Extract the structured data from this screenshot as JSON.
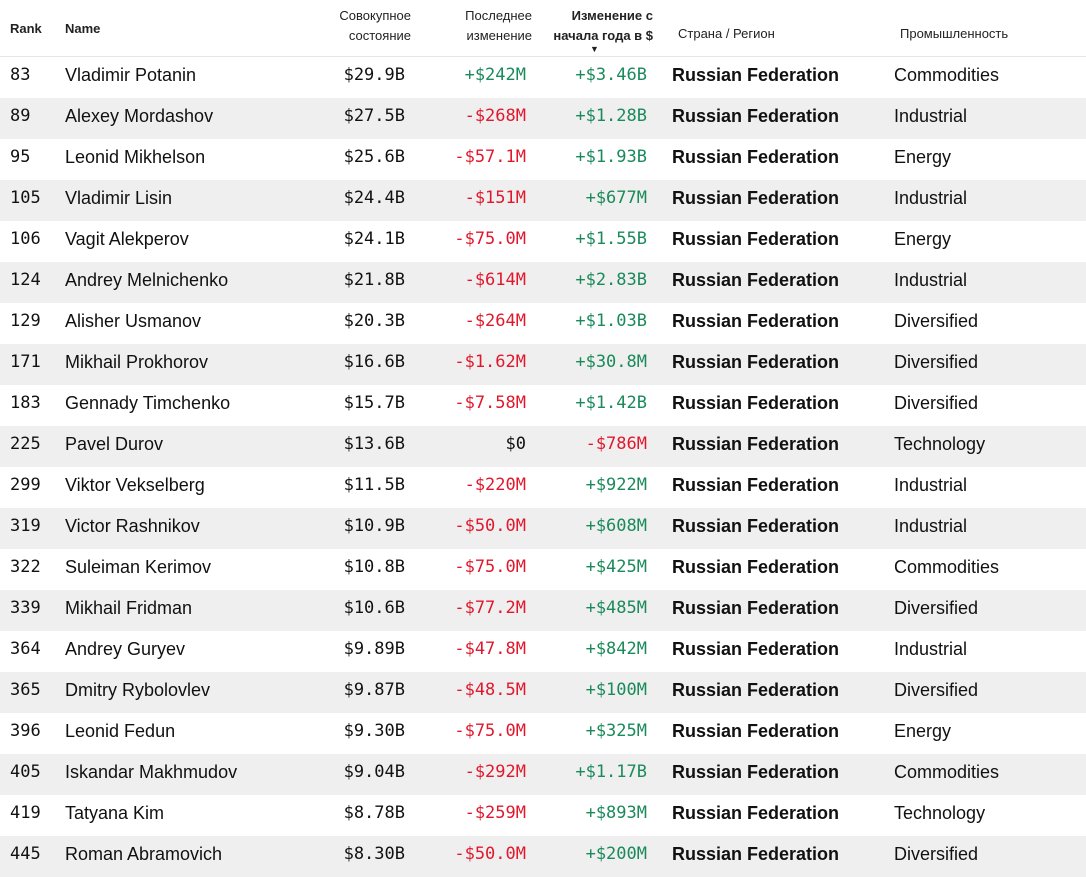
{
  "colors": {
    "positive": "#1a8a5a",
    "negative": "#e0182d",
    "stripe": "#efefef"
  },
  "header": {
    "rank": "Rank",
    "name": "Name",
    "net_worth": [
      "Совокупное",
      "состояние"
    ],
    "last_change": [
      "Последнее",
      "изменение"
    ],
    "ytd_change": [
      "Изменение с",
      "начала года в $"
    ],
    "sort_icon": "sort-desc-icon",
    "country": "Страна / Регион",
    "industry": "Промышленность"
  },
  "rows": [
    [
      "83",
      "Vladimir Potanin",
      "$29.9B",
      "+$242M",
      "+$3.46B",
      "Russian Federation",
      "Commodities"
    ],
    [
      "89",
      "Alexey Mordashov",
      "$27.5B",
      "-$268M",
      "+$1.28B",
      "Russian Federation",
      "Industrial"
    ],
    [
      "95",
      "Leonid Mikhelson",
      "$25.6B",
      "-$57.1M",
      "+$1.93B",
      "Russian Federation",
      "Energy"
    ],
    [
      "105",
      "Vladimir Lisin",
      "$24.4B",
      "-$151M",
      "+$677M",
      "Russian Federation",
      "Industrial"
    ],
    [
      "106",
      "Vagit Alekperov",
      "$24.1B",
      "-$75.0M",
      "+$1.55B",
      "Russian Federation",
      "Energy"
    ],
    [
      "124",
      "Andrey Melnichenko",
      "$21.8B",
      "-$614M",
      "+$2.83B",
      "Russian Federation",
      "Industrial"
    ],
    [
      "129",
      "Alisher Usmanov",
      "$20.3B",
      "-$264M",
      "+$1.03B",
      "Russian Federation",
      "Diversified"
    ],
    [
      "171",
      "Mikhail Prokhorov",
      "$16.6B",
      "-$1.62M",
      "+$30.8M",
      "Russian Federation",
      "Diversified"
    ],
    [
      "183",
      "Gennady Timchenko",
      "$15.7B",
      "-$7.58M",
      "+$1.42B",
      "Russian Federation",
      "Diversified"
    ],
    [
      "225",
      "Pavel Durov",
      "$13.6B",
      "$0",
      "-$786M",
      "Russian Federation",
      "Technology"
    ],
    [
      "299",
      "Viktor Vekselberg",
      "$11.5B",
      "-$220M",
      "+$922M",
      "Russian Federation",
      "Industrial"
    ],
    [
      "319",
      "Victor Rashnikov",
      "$10.9B",
      "-$50.0M",
      "+$608M",
      "Russian Federation",
      "Industrial"
    ],
    [
      "322",
      "Suleiman Kerimov",
      "$10.8B",
      "-$75.0M",
      "+$425M",
      "Russian Federation",
      "Commodities"
    ],
    [
      "339",
      "Mikhail Fridman",
      "$10.6B",
      "-$77.2M",
      "+$485M",
      "Russian Federation",
      "Diversified"
    ],
    [
      "364",
      "Andrey Guryev",
      "$9.89B",
      "-$47.8M",
      "+$842M",
      "Russian Federation",
      "Industrial"
    ],
    [
      "365",
      "Dmitry Rybolovlev",
      "$9.87B",
      "-$48.5M",
      "+$100M",
      "Russian Federation",
      "Diversified"
    ],
    [
      "396",
      "Leonid Fedun",
      "$9.30B",
      "-$75.0M",
      "+$325M",
      "Russian Federation",
      "Energy"
    ],
    [
      "405",
      "Iskandar Makhmudov",
      "$9.04B",
      "-$292M",
      "+$1.17B",
      "Russian Federation",
      "Commodities"
    ],
    [
      "419",
      "Tatyana Kim",
      "$8.78B",
      "-$259M",
      "+$893M",
      "Russian Federation",
      "Technology"
    ],
    [
      "445",
      "Roman Abramovich",
      "$8.30B",
      "-$50.0M",
      "+$200M",
      "Russian Federation",
      "Diversified"
    ]
  ]
}
